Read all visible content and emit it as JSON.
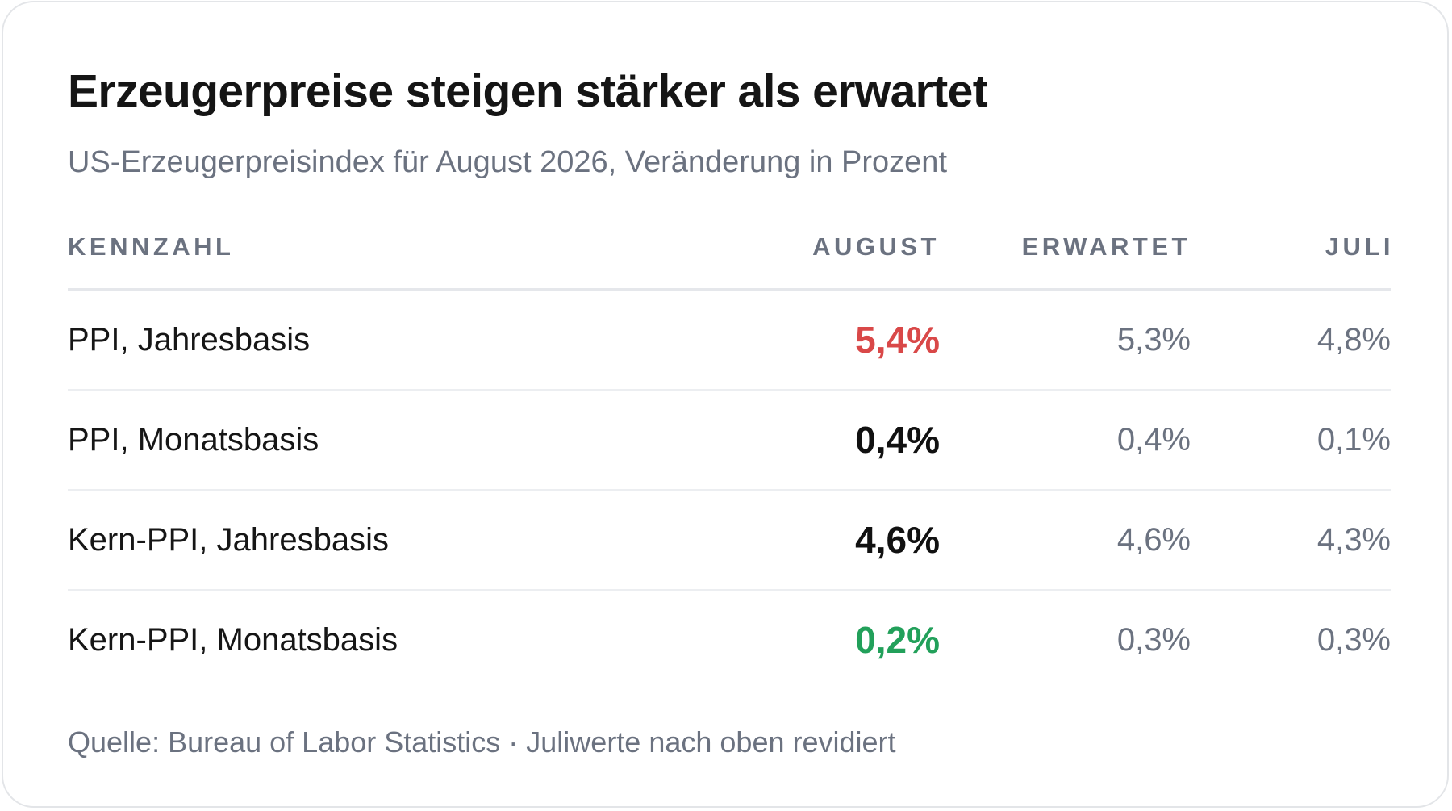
{
  "title": "Erzeugerpreise steigen stärker als erwartet",
  "subtitle": "US-Erzeugerpreisindex für August 2026, Veränderung in Prozent",
  "source": "Quelle: Bureau of Labor Statistics · Juliwerte nach oben revidiert",
  "colors": {
    "above_expectation": "#d94848",
    "below_expectation": "#22a05a",
    "muted_text": "#6b7280"
  },
  "chart_data": {
    "type": "table",
    "title": "Erzeugerpreise steigen stärker als erwartet",
    "subtitle": "US-Erzeugerpreisindex für August 2026, Veränderung in Prozent",
    "columns": [
      "KENNZAHL",
      "AUGUST",
      "ERWARTET",
      "JULI"
    ],
    "rows": [
      {
        "name": "PPI, Jahresbasis",
        "august": "5,4%",
        "erwartet": "5,3%",
        "juli": "4,8%",
        "august_status": "above"
      },
      {
        "name": "PPI, Monatsbasis",
        "august": "0,4%",
        "erwartet": "0,4%",
        "juli": "0,1%",
        "august_status": "inline"
      },
      {
        "name": "Kern-PPI, Jahresbasis",
        "august": "4,6%",
        "erwartet": "4,6%",
        "juli": "4,3%",
        "august_status": "inline"
      },
      {
        "name": "Kern-PPI, Monatsbasis",
        "august": "0,2%",
        "erwartet": "0,3%",
        "juli": "0,3%",
        "august_status": "below"
      }
    ]
  }
}
